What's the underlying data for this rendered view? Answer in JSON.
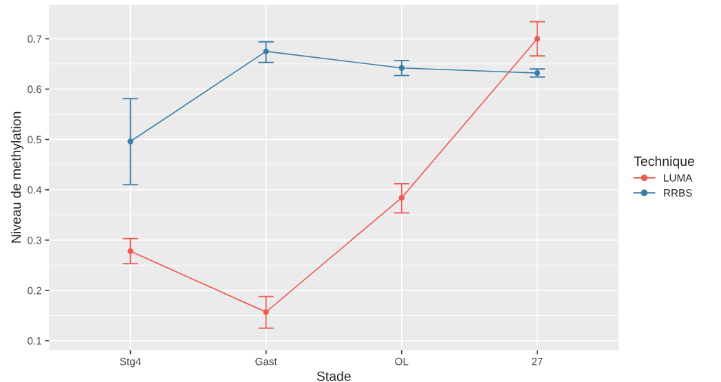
{
  "chart_data": {
    "type": "line",
    "xlabel": "Stade",
    "ylabel": "Niveau de methylation",
    "legend_title": "Technique",
    "categories": [
      "Stg4",
      "Gast",
      "OL",
      "27"
    ],
    "series": [
      {
        "name": "LUMA",
        "color": "#ee5a52",
        "values": [
          0.278,
          0.157,
          0.384,
          0.7
        ],
        "errors": [
          [
            0.253,
            0.303
          ],
          [
            0.125,
            0.188
          ],
          [
            0.354,
            0.412
          ],
          [
            0.666,
            0.734
          ]
        ]
      },
      {
        "name": "RRBS",
        "color": "#3a7ea6",
        "values": [
          0.496,
          0.675,
          0.642,
          0.632
        ],
        "errors": [
          [
            0.41,
            0.581
          ],
          [
            0.653,
            0.694
          ],
          [
            0.627,
            0.657
          ],
          [
            0.624,
            0.64
          ]
        ]
      }
    ],
    "ylim": [
      0.081,
      0.768
    ],
    "yticks": [
      0.1,
      0.2,
      0.3,
      0.4,
      0.5,
      0.6,
      0.7
    ],
    "grid": true,
    "legend": "right",
    "marker": "circle",
    "line_style": "solid"
  }
}
